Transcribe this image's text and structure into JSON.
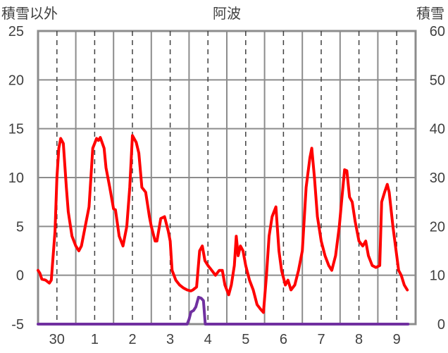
{
  "chart_data": {
    "type": "line",
    "title": "阿波",
    "ylabel_left": "積雪以外",
    "ylabel_right": "積雪",
    "y_left": {
      "min": -5,
      "max": 25,
      "ticks": [
        "-5",
        "0",
        "5",
        "10",
        "15",
        "20",
        "25"
      ]
    },
    "y_right": {
      "min": 0,
      "max": 60,
      "ticks": [
        "0",
        "10",
        "20",
        "30",
        "40",
        "50",
        "60"
      ]
    },
    "x": {
      "min": 0,
      "max": 10.0,
      "day_ticks": [
        0.5,
        1.5,
        2.5,
        3.5,
        4.5,
        5.5,
        6.5,
        7.5,
        8.5,
        9.5
      ],
      "day_labels": [
        "30",
        "1",
        "2",
        "3",
        "4",
        "5",
        "6",
        "7",
        "8",
        "9"
      ],
      "day_boundaries": [
        1,
        2,
        3,
        4,
        5,
        6,
        7,
        8,
        9
      ]
    },
    "grid": "horizontal solid, vertical dashed at each day",
    "series": [
      {
        "axis": "left",
        "color": "#ff0000",
        "points": [
          [
            0.0,
            0.5
          ],
          [
            0.05,
            0.2
          ],
          [
            0.1,
            -0.4
          ],
          [
            0.2,
            -0.5
          ],
          [
            0.3,
            -0.8
          ],
          [
            0.35,
            -0.5
          ],
          [
            0.45,
            4.5
          ],
          [
            0.5,
            10.0
          ],
          [
            0.55,
            13.0
          ],
          [
            0.6,
            14.0
          ],
          [
            0.67,
            13.5
          ],
          [
            0.75,
            9.0
          ],
          [
            0.8,
            6.5
          ],
          [
            0.9,
            4.0
          ],
          [
            1.0,
            3.0
          ],
          [
            1.08,
            2.5
          ],
          [
            1.15,
            3.0
          ],
          [
            1.25,
            5.0
          ],
          [
            1.35,
            7.0
          ],
          [
            1.45,
            13.0
          ],
          [
            1.55,
            14.0
          ],
          [
            1.6,
            13.8
          ],
          [
            1.65,
            14.1
          ],
          [
            1.75,
            13.0
          ],
          [
            1.8,
            11.0
          ],
          [
            1.9,
            9.0
          ],
          [
            2.0,
            6.8
          ],
          [
            2.05,
            6.7
          ],
          [
            2.15,
            4.0
          ],
          [
            2.25,
            3.0
          ],
          [
            2.35,
            5.0
          ],
          [
            2.43,
            9.0
          ],
          [
            2.5,
            14.3
          ],
          [
            2.6,
            13.6
          ],
          [
            2.67,
            12.5
          ],
          [
            2.75,
            9.0
          ],
          [
            2.85,
            8.5
          ],
          [
            2.95,
            6.0
          ],
          [
            3.0,
            5.0
          ],
          [
            3.1,
            3.5
          ],
          [
            3.15,
            3.5
          ],
          [
            3.25,
            5.8
          ],
          [
            3.35,
            6.0
          ],
          [
            3.45,
            4.5
          ],
          [
            3.5,
            3.5
          ],
          [
            3.55,
            0.5
          ],
          [
            3.65,
            -0.5
          ],
          [
            3.75,
            -1.0
          ],
          [
            3.85,
            -1.3
          ],
          [
            3.95,
            -1.5
          ],
          [
            4.05,
            -1.6
          ],
          [
            4.1,
            -1.5
          ],
          [
            4.2,
            -1.2
          ],
          [
            4.28,
            2.5
          ],
          [
            4.35,
            3.0
          ],
          [
            4.42,
            1.5
          ],
          [
            4.5,
            1.0
          ],
          [
            4.6,
            0.5
          ],
          [
            4.7,
            0.0
          ],
          [
            4.8,
            0.5
          ],
          [
            4.88,
            0.5
          ],
          [
            4.95,
            -1.0
          ],
          [
            5.05,
            -2.0
          ],
          [
            5.12,
            -1.0
          ],
          [
            5.2,
            1.0
          ],
          [
            5.25,
            4.0
          ],
          [
            5.3,
            2.0
          ],
          [
            5.36,
            3.0
          ],
          [
            5.43,
            2.5
          ],
          [
            5.5,
            1.0
          ],
          [
            5.6,
            -0.5
          ],
          [
            5.7,
            -1.5
          ],
          [
            5.8,
            -3.0
          ],
          [
            5.9,
            -3.5
          ],
          [
            5.97,
            -3.8
          ],
          [
            6.05,
            0.0
          ],
          [
            6.12,
            4.0
          ],
          [
            6.2,
            6.0
          ],
          [
            6.25,
            6.5
          ],
          [
            6.3,
            7.0
          ],
          [
            6.38,
            2.5
          ],
          [
            6.45,
            0.5
          ],
          [
            6.55,
            -1.0
          ],
          [
            6.62,
            -0.5
          ],
          [
            6.7,
            -1.5
          ],
          [
            6.8,
            -1.0
          ],
          [
            6.9,
            0.5
          ],
          [
            7.0,
            2.5
          ],
          [
            7.1,
            9.0
          ],
          [
            7.2,
            12.0
          ],
          [
            7.25,
            13.0
          ],
          [
            7.32,
            10.0
          ],
          [
            7.4,
            6.0
          ],
          [
            7.5,
            3.5
          ],
          [
            7.6,
            2.0
          ],
          [
            7.7,
            1.0
          ],
          [
            7.78,
            0.5
          ],
          [
            7.88,
            2.0
          ],
          [
            7.98,
            5.0
          ],
          [
            8.05,
            8.0
          ],
          [
            8.12,
            10.8
          ],
          [
            8.18,
            10.7
          ],
          [
            8.25,
            8.0
          ],
          [
            8.32,
            7.5
          ],
          [
            8.4,
            5.5
          ],
          [
            8.5,
            3.5
          ],
          [
            8.6,
            3.0
          ],
          [
            8.68,
            3.5
          ],
          [
            8.75,
            2.0
          ],
          [
            8.85,
            1.0
          ],
          [
            8.95,
            0.8
          ],
          [
            9.05,
            1.0
          ],
          [
            9.1,
            7.5
          ],
          [
            9.18,
            8.5
          ],
          [
            9.25,
            9.3
          ],
          [
            9.3,
            8.5
          ],
          [
            9.4,
            5.0
          ],
          [
            9.5,
            2.0
          ],
          [
            9.55,
            0.5
          ],
          [
            9.62,
            0.0
          ],
          [
            9.7,
            -1.0
          ],
          [
            9.78,
            -1.5
          ]
        ]
      },
      {
        "axis": "right",
        "color": "#7030a0",
        "points": [
          [
            0.0,
            0.0
          ],
          [
            3.95,
            0.0
          ],
          [
            4.0,
            1.0
          ],
          [
            4.05,
            2.5
          ],
          [
            4.12,
            2.8
          ],
          [
            4.18,
            3.5
          ],
          [
            4.25,
            5.5
          ],
          [
            4.32,
            5.3
          ],
          [
            4.38,
            4.8
          ],
          [
            4.43,
            0.0
          ],
          [
            9.8,
            0.0
          ]
        ]
      }
    ]
  }
}
